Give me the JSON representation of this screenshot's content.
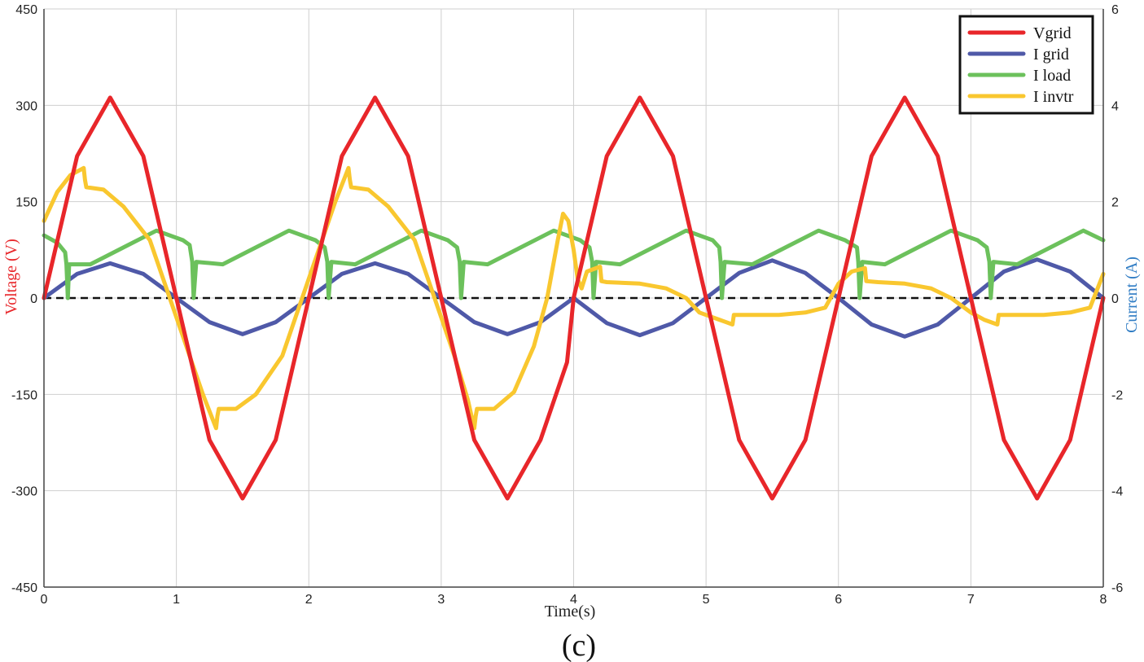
{
  "chart_data": {
    "type": "line",
    "xlabel": "Time(s)",
    "ylabel_left": "Voltage (V)",
    "ylabel_right": "Current (A)",
    "panel_label": "(c)",
    "xlim": [
      0,
      8
    ],
    "ylim_left": [
      -450,
      450
    ],
    "ylim_right": [
      -6,
      6
    ],
    "grid": true,
    "legend_position": "top-right",
    "x_ticks": [
      0,
      1,
      2,
      3,
      4,
      5,
      6,
      7,
      8
    ],
    "y_ticks_left": [
      450,
      300,
      150,
      0,
      -150,
      -300,
      -450
    ],
    "y_ticks_right": [
      6,
      4,
      2,
      0,
      -2,
      -4,
      -6
    ],
    "colors": {
      "vgrid": "#e8262a",
      "igrid": "#4f59a8",
      "iload": "#6cc15c",
      "invtr": "#f9c72f",
      "zero_line": "#111111",
      "voltage_axis": "#e8262a",
      "current_axis": "#2f7cc4"
    },
    "series": [
      {
        "name": "Vgrid",
        "axis": "left",
        "color": "#e8262a",
        "x": [
          0,
          0.25,
          0.5,
          0.75,
          1.0,
          1.25,
          1.5,
          1.75,
          2.0,
          2.25,
          2.5,
          2.75,
          3.0,
          3.25,
          3.5,
          3.75,
          3.95,
          4.0,
          4.25,
          4.5,
          4.75,
          5.0,
          5.25,
          5.5,
          5.75,
          6.0,
          6.25,
          6.5,
          6.75,
          7.0,
          7.25,
          7.5,
          7.75,
          8.0
        ],
        "y": [
          0,
          221,
          312,
          221,
          0,
          -221,
          -312,
          -221,
          0,
          221,
          312,
          221,
          0,
          -221,
          -312,
          -221,
          -100,
          0,
          221,
          312,
          221,
          0,
          -221,
          -312,
          -221,
          0,
          221,
          312,
          221,
          0,
          -221,
          -312,
          -221,
          0
        ]
      },
      {
        "name": "I grid",
        "axis": "right",
        "color": "#4f59a8",
        "x": [
          0,
          0.25,
          0.5,
          0.75,
          1.0,
          1.25,
          1.5,
          1.75,
          2.0,
          2.25,
          2.5,
          2.75,
          3.0,
          3.25,
          3.5,
          3.75,
          4.0,
          4.25,
          4.5,
          4.75,
          5.0,
          5.25,
          5.5,
          5.75,
          6.0,
          6.25,
          6.5,
          6.75,
          7.0,
          7.25,
          7.5,
          7.75,
          8.0
        ],
        "y": [
          0,
          0.5,
          0.72,
          0.5,
          0,
          -0.5,
          -0.75,
          -0.5,
          0,
          0.5,
          0.72,
          0.5,
          0,
          -0.5,
          -0.75,
          -0.5,
          0,
          -0.52,
          -0.77,
          -0.52,
          0,
          0.52,
          0.78,
          0.52,
          0,
          -0.55,
          -0.8,
          -0.55,
          0,
          0.55,
          0.8,
          0.55,
          0
        ]
      },
      {
        "name": "I load",
        "axis": "right",
        "color": "#6cc15c",
        "x": [
          0,
          0.1,
          0.16,
          0.17,
          0.18,
          0.19,
          0.35,
          0.6,
          0.85,
          1.05,
          1.1,
          1.12,
          1.13,
          1.15,
          1.35,
          1.6,
          1.85,
          2.05,
          2.12,
          2.14,
          2.15,
          2.17,
          2.35,
          2.6,
          2.85,
          3.05,
          3.12,
          3.14,
          3.15,
          3.17,
          3.35,
          3.6,
          3.85,
          4.05,
          4.12,
          4.14,
          4.15,
          4.17,
          4.35,
          4.6,
          4.85,
          5.05,
          5.1,
          5.11,
          5.12,
          5.14,
          5.35,
          5.6,
          5.85,
          6.05,
          6.14,
          6.15,
          6.16,
          6.18,
          6.35,
          6.6,
          6.85,
          7.05,
          7.12,
          7.14,
          7.15,
          7.17,
          7.35,
          7.6,
          7.85,
          8.0
        ],
        "y": [
          1.3,
          1.15,
          0.95,
          0.7,
          0,
          0.7,
          0.7,
          1.05,
          1.4,
          1.2,
          1.1,
          0.75,
          0,
          0.75,
          0.7,
          1.05,
          1.4,
          1.2,
          1.05,
          0.75,
          0,
          0.75,
          0.7,
          1.05,
          1.4,
          1.2,
          1.05,
          0.75,
          0,
          0.75,
          0.7,
          1.05,
          1.4,
          1.2,
          1.05,
          0.75,
          0,
          0.75,
          0.7,
          1.05,
          1.4,
          1.2,
          1.05,
          0.75,
          0,
          0.75,
          0.7,
          1.05,
          1.4,
          1.2,
          1.05,
          0.75,
          0,
          0.75,
          0.7,
          1.05,
          1.4,
          1.2,
          1.05,
          0.75,
          0,
          0.75,
          0.7,
          1.05,
          1.4,
          1.2
        ]
      },
      {
        "name": "I invtr",
        "axis": "right",
        "color": "#f9c72f",
        "x": [
          0,
          0.1,
          0.2,
          0.3,
          0.31,
          0.32,
          0.45,
          0.6,
          0.8,
          0.95,
          1.1,
          1.2,
          1.3,
          1.31,
          1.32,
          1.45,
          1.6,
          1.8,
          1.95,
          2.1,
          2.2,
          2.3,
          2.31,
          2.32,
          2.45,
          2.6,
          2.8,
          2.95,
          3.1,
          3.2,
          3.25,
          3.26,
          3.27,
          3.4,
          3.55,
          3.7,
          3.8,
          3.88,
          3.92,
          3.96,
          4.0,
          4.03,
          4.06,
          4.1,
          4.2,
          4.21,
          4.25,
          4.5,
          4.7,
          4.85,
          4.95,
          5.1,
          5.2,
          5.21,
          5.3,
          5.55,
          5.75,
          5.9,
          6.0,
          6.1,
          6.2,
          6.21,
          6.3,
          6.5,
          6.7,
          6.85,
          7.0,
          7.1,
          7.2,
          7.21,
          7.3,
          7.55,
          7.75,
          7.9,
          8.0
        ],
        "y": [
          1.6,
          2.2,
          2.55,
          2.7,
          2.45,
          2.3,
          2.25,
          1.9,
          1.2,
          0,
          -1.2,
          -2.0,
          -2.7,
          -2.45,
          -2.3,
          -2.3,
          -2.0,
          -1.2,
          0,
          1.2,
          2.0,
          2.7,
          2.45,
          2.3,
          2.25,
          1.9,
          1.2,
          0,
          -1.2,
          -2.1,
          -2.7,
          -2.45,
          -2.3,
          -2.3,
          -1.95,
          -1.0,
          0,
          1.2,
          1.75,
          1.6,
          1.0,
          0.4,
          0.2,
          0.55,
          0.65,
          0.35,
          0.33,
          0.3,
          0.2,
          0,
          -0.3,
          -0.45,
          -0.55,
          -0.35,
          -0.35,
          -0.35,
          -0.3,
          -0.2,
          0.3,
          0.55,
          0.62,
          0.35,
          0.33,
          0.3,
          0.2,
          0,
          -0.3,
          -0.45,
          -0.55,
          -0.35,
          -0.35,
          -0.35,
          -0.3,
          -0.2,
          0.5
        ]
      }
    ]
  }
}
